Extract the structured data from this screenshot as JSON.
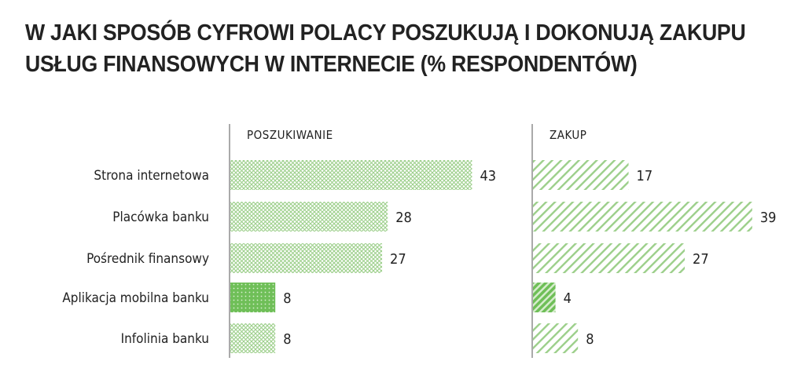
{
  "chart_data": {
    "type": "bar",
    "title_lines": [
      "W JAKI SPOSÓB CYFROWI POLACY POSZUKUJĄ I DOKONUJĄ ZAKUPU",
      "USŁUG FINANSOWYCH W INTERNECIE (% RESPONDENTÓW)"
    ],
    "categories": [
      "Strona internetowa",
      "Placówka banku",
      "Pośrednik finansowy",
      "Aplikacja mobilna banku",
      "Infolinia banku"
    ],
    "series": [
      {
        "name": "POSZUKIWANIE",
        "values": [
          43,
          28,
          27,
          8,
          8
        ]
      },
      {
        "name": "ZAKUP",
        "values": [
          17,
          39,
          27,
          4,
          8
        ]
      }
    ],
    "highlight_index": 3,
    "colors": {
      "light": "#a9d899",
      "dark": "#6fbf58",
      "text": "#222222",
      "axis": "#555555"
    }
  }
}
